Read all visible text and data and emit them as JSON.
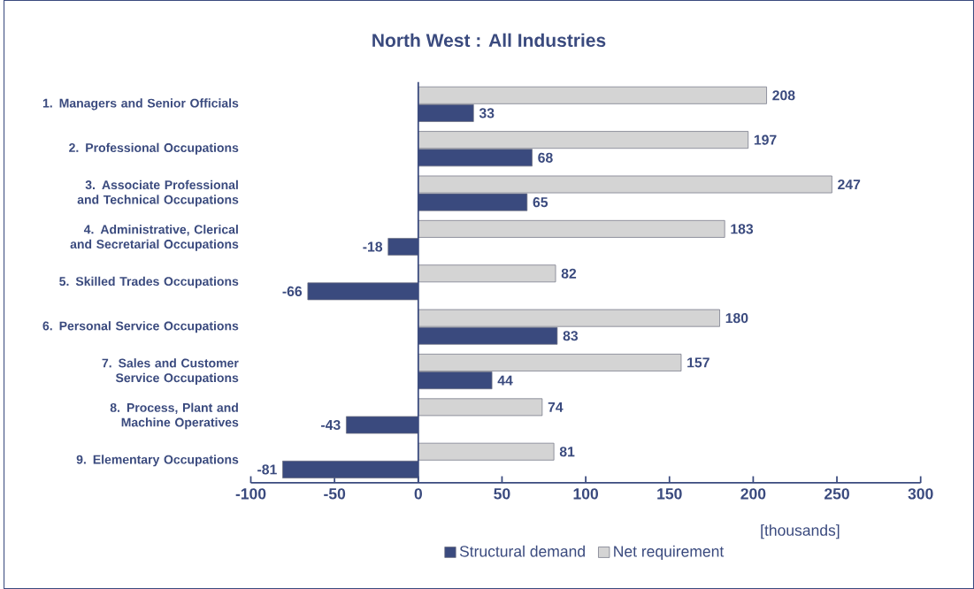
{
  "chart_data": {
    "type": "bar",
    "title": "North West : All Industries",
    "orientation": "horizontal",
    "categories": [
      "1. Managers and Senior Officials",
      "2. Professional Occupations",
      "3. Associate Professional and Technical Occupations",
      "4. Administrative, Clerical and Secretarial Occupations",
      "5. Skilled Trades Occupations",
      "6. Personal Service Occupations",
      "7. Sales and Customer Service Occupations",
      "8. Process, Plant and Machine Operatives",
      "9. Elementary Occupations"
    ],
    "series": [
      {
        "name": "Structural demand",
        "color": "#3a4a7e",
        "values": [
          33,
          68,
          65,
          -18,
          -66,
          83,
          44,
          -43,
          -81
        ]
      },
      {
        "name": "Net requirement",
        "color": "#d4d4d4",
        "values": [
          208,
          197,
          247,
          183,
          82,
          180,
          157,
          74,
          81
        ]
      }
    ],
    "xlabel": "[thousands]",
    "xlim": [
      -100,
      300
    ],
    "xticks": [
      -100,
      -50,
      0,
      50,
      100,
      150,
      200,
      250,
      300
    ],
    "ref_lines": [
      {
        "axis": "x",
        "value": 0
      }
    ],
    "data_labels": true,
    "legend": "bottom",
    "grid": false
  }
}
